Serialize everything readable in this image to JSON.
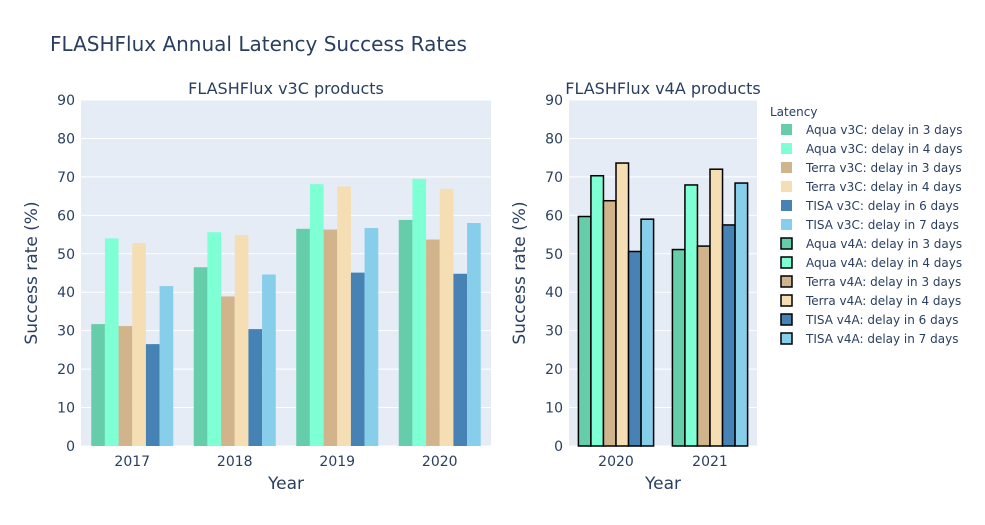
{
  "title": "FLASHFlux Annual Latency Success Rates",
  "legend_title": "Latency",
  "colors": {
    "plot_bg": "#e5ecf6",
    "grid": "#ffffff",
    "text": "#2a3f5f",
    "aqua_3d": "#66cdaa",
    "aqua_4d": "#7fffd4",
    "terra_3d": "#d2b48c",
    "terra_4d": "#f5deb3",
    "tisa_6d": "#4682b4",
    "tisa_7d": "#87ceeb",
    "outline": "#000000"
  },
  "chart_data": [
    {
      "type": "bar",
      "title": "FLASHFlux v3C products",
      "xlabel": "Year",
      "ylabel": "Success rate (%)",
      "ylim": [
        0,
        90
      ],
      "yticks": [
        0,
        10,
        20,
        30,
        40,
        50,
        60,
        70,
        80,
        90
      ],
      "grid": true,
      "categories": [
        "2017",
        "2018",
        "2019",
        "2020"
      ],
      "series": [
        {
          "name": "Aqua v3C: delay in 3 days",
          "color_key": "aqua_3d",
          "values": [
            31.7,
            46.5,
            56.5,
            58.8
          ]
        },
        {
          "name": "Aqua v3C: delay in 4 days",
          "color_key": "aqua_4d",
          "values": [
            54.0,
            55.6,
            68.1,
            69.5
          ]
        },
        {
          "name": "Terra v3C: delay in 3 days",
          "color_key": "terra_3d",
          "values": [
            31.2,
            38.9,
            56.3,
            53.7
          ]
        },
        {
          "name": "Terra v3C: delay in 4 days",
          "color_key": "terra_4d",
          "values": [
            52.8,
            54.9,
            67.5,
            66.9
          ]
        },
        {
          "name": "TISA v3C: delay in 6 days",
          "color_key": "tisa_6d",
          "values": [
            26.5,
            30.4,
            45.1,
            44.8
          ]
        },
        {
          "name": "TISA v3C: delay in 7 days",
          "color_key": "tisa_7d",
          "values": [
            41.6,
            44.6,
            56.7,
            58.0
          ]
        }
      ]
    },
    {
      "type": "bar",
      "title": "FLASHFlux v4A products",
      "xlabel": "Year",
      "ylabel": "Success rate (%)",
      "ylim": [
        0,
        90
      ],
      "yticks": [
        0,
        10,
        20,
        30,
        40,
        50,
        60,
        70,
        80,
        90
      ],
      "grid": true,
      "categories": [
        "2020",
        "2021"
      ],
      "series": [
        {
          "name": "Aqua v4A: delay in 3 days",
          "color_key": "aqua_3d",
          "values": [
            59.7,
            51.1
          ]
        },
        {
          "name": "Aqua v4A: delay in 4 days",
          "color_key": "aqua_4d",
          "values": [
            70.3,
            67.9
          ]
        },
        {
          "name": "Terra v4A: delay in 3 days",
          "color_key": "terra_3d",
          "values": [
            63.8,
            52.0
          ]
        },
        {
          "name": "Terra v4A: delay in 4 days",
          "color_key": "terra_4d",
          "values": [
            73.6,
            72.0
          ]
        },
        {
          "name": "TISA v4A: delay in 6 days",
          "color_key": "tisa_6d",
          "values": [
            50.6,
            57.5
          ]
        },
        {
          "name": "TISA v4A: delay in 7 days",
          "color_key": "tisa_7d",
          "values": [
            59.0,
            68.4
          ]
        }
      ]
    }
  ]
}
